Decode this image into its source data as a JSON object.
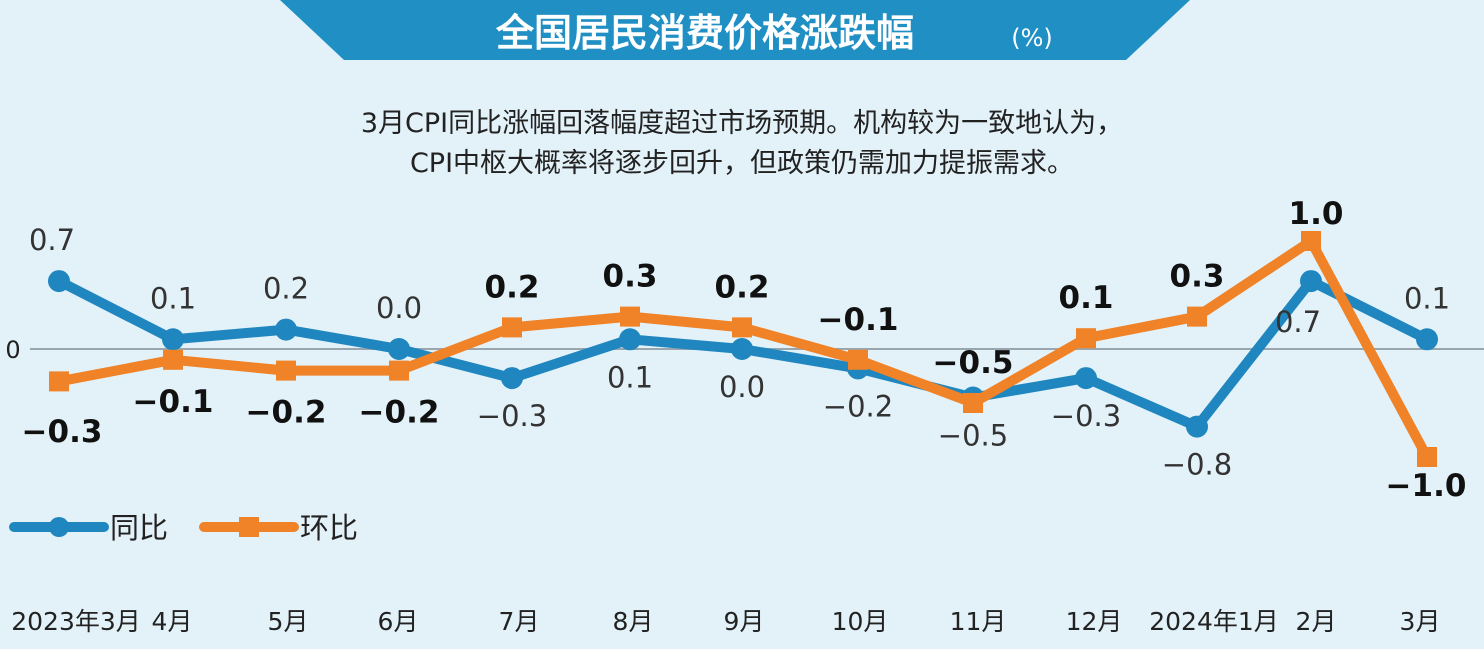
{
  "title": "全国居民消费价格涨跌幅",
  "title_unit": "(%)",
  "subtitle_lines": [
    "3月CPI同比涨幅回落幅度超过市场预期。机构较为一致地认为，",
    "CPI中枢大概率将逐步回升，但政策仍需加力提振需求。"
  ],
  "colors": {
    "background": "#e3f2f9",
    "title_band": "#1f8fc4",
    "yoy_line": "#1f86bf",
    "mom_line": "#f08227",
    "zero_line": "#9aa6ad"
  },
  "chart_data": {
    "type": "line",
    "title": "全国居民消费价格涨跌幅",
    "unit": "%",
    "categories": [
      "2023年3月",
      "4月",
      "5月",
      "6月",
      "7月",
      "8月",
      "9月",
      "10月",
      "11月",
      "12月",
      "2024年1月",
      "2月",
      "3月"
    ],
    "zero_label": "0",
    "grid": false,
    "legend_position": "bottom-left",
    "series": [
      {
        "name": "同比",
        "marker": "circle",
        "values": [
          0.7,
          0.1,
          0.2,
          0.0,
          -0.3,
          0.1,
          0.0,
          -0.2,
          -0.5,
          -0.3,
          -0.8,
          0.7,
          0.1
        ],
        "labels": [
          "0.7",
          "0.1",
          "0.2",
          "0.0",
          "−0.3",
          "0.1",
          "0.0",
          "−0.2",
          "−0.5",
          "−0.3",
          "−0.8",
          "0.7",
          "0.1"
        ]
      },
      {
        "name": "环比",
        "marker": "square",
        "values": [
          -0.3,
          -0.1,
          -0.2,
          -0.2,
          0.2,
          0.3,
          0.2,
          -0.1,
          -0.5,
          0.1,
          0.3,
          1.0,
          -1.0
        ],
        "labels": [
          "−0.3",
          "−0.1",
          "−0.2",
          "−0.2",
          "0.2",
          "0.3",
          "0.2",
          "−0.1",
          "−0.5",
          "0.1",
          "0.3",
          "1.0",
          "−1.0"
        ]
      }
    ]
  }
}
